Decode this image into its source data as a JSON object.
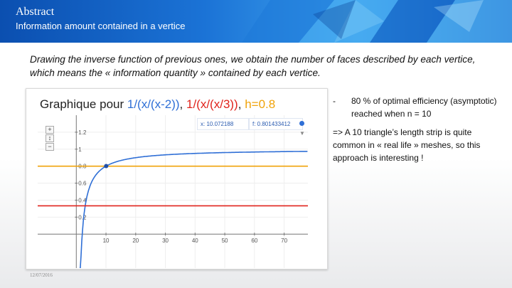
{
  "header": {
    "title": "Abstract",
    "subtitle": "Information amount contained in a vertice"
  },
  "intro_text": "Drawing the inverse function of previous ones, we obtain the number of faces described by each vertice, which means the « information quantity » contained by each vertice.",
  "graph": {
    "title_prefix": "Graphique pour ",
    "func1": "1/(x/(x-2))",
    "sep1": ", ",
    "func2": "1/(x/(x/3))",
    "sep2": ", ",
    "func3": "h=0.8",
    "readout_x": "x: 10.072188",
    "readout_f": "f: 0.801433412",
    "zoom_in": "+",
    "zoom_out": "−",
    "colors": {
      "func1": "#2f6fd6",
      "func2": "#e0231c",
      "func3": "#f0a30a"
    }
  },
  "chart_data": {
    "type": "line",
    "title": "Graphique pour 1/(x/(x-2)), 1/(x/(x/3)), h=0.8",
    "xlabel": "",
    "ylabel": "",
    "xlim": [
      -13,
      78
    ],
    "ylim": [
      -0.4,
      1.4
    ],
    "x_ticks": [
      10,
      20,
      30,
      40,
      50,
      60,
      70
    ],
    "y_ticks": [
      0.2,
      0.4,
      0.6,
      0.8,
      1,
      1.2
    ],
    "series": [
      {
        "name": "1/(x/(x-2))",
        "formula": "(x-2)/x",
        "color": "#2f6fd6",
        "x": [
          2,
          2.5,
          3,
          4,
          5,
          6,
          8,
          10,
          15,
          20,
          30,
          40,
          50,
          60,
          70,
          78
        ],
        "y": [
          0,
          0.2,
          0.333,
          0.5,
          0.6,
          0.667,
          0.75,
          0.8,
          0.867,
          0.9,
          0.933,
          0.95,
          0.96,
          0.967,
          0.971,
          0.974
        ]
      },
      {
        "name": "1/(x/(x/3))",
        "formula": "1/3",
        "color": "#e0231c",
        "x": [
          -13,
          78
        ],
        "y": [
          0.333,
          0.333
        ]
      },
      {
        "name": "h=0.8",
        "formula": "0.8",
        "color": "#f0a30a",
        "x": [
          -13,
          78
        ],
        "y": [
          0.8,
          0.8
        ]
      }
    ],
    "highlight_point": {
      "x": 10.072188,
      "y": 0.801433412
    },
    "grid": true,
    "legend": "title"
  },
  "notes": {
    "bullet_dash": "-",
    "bullet_text": "80 % of optimal efficiency (asymptotic) reached when n = 10",
    "conclusion": "=> A 10 triangle’s length strip is quite common in « real life » meshes, so this approach is interesting !"
  },
  "footer": {
    "date": "12/07/2016"
  }
}
